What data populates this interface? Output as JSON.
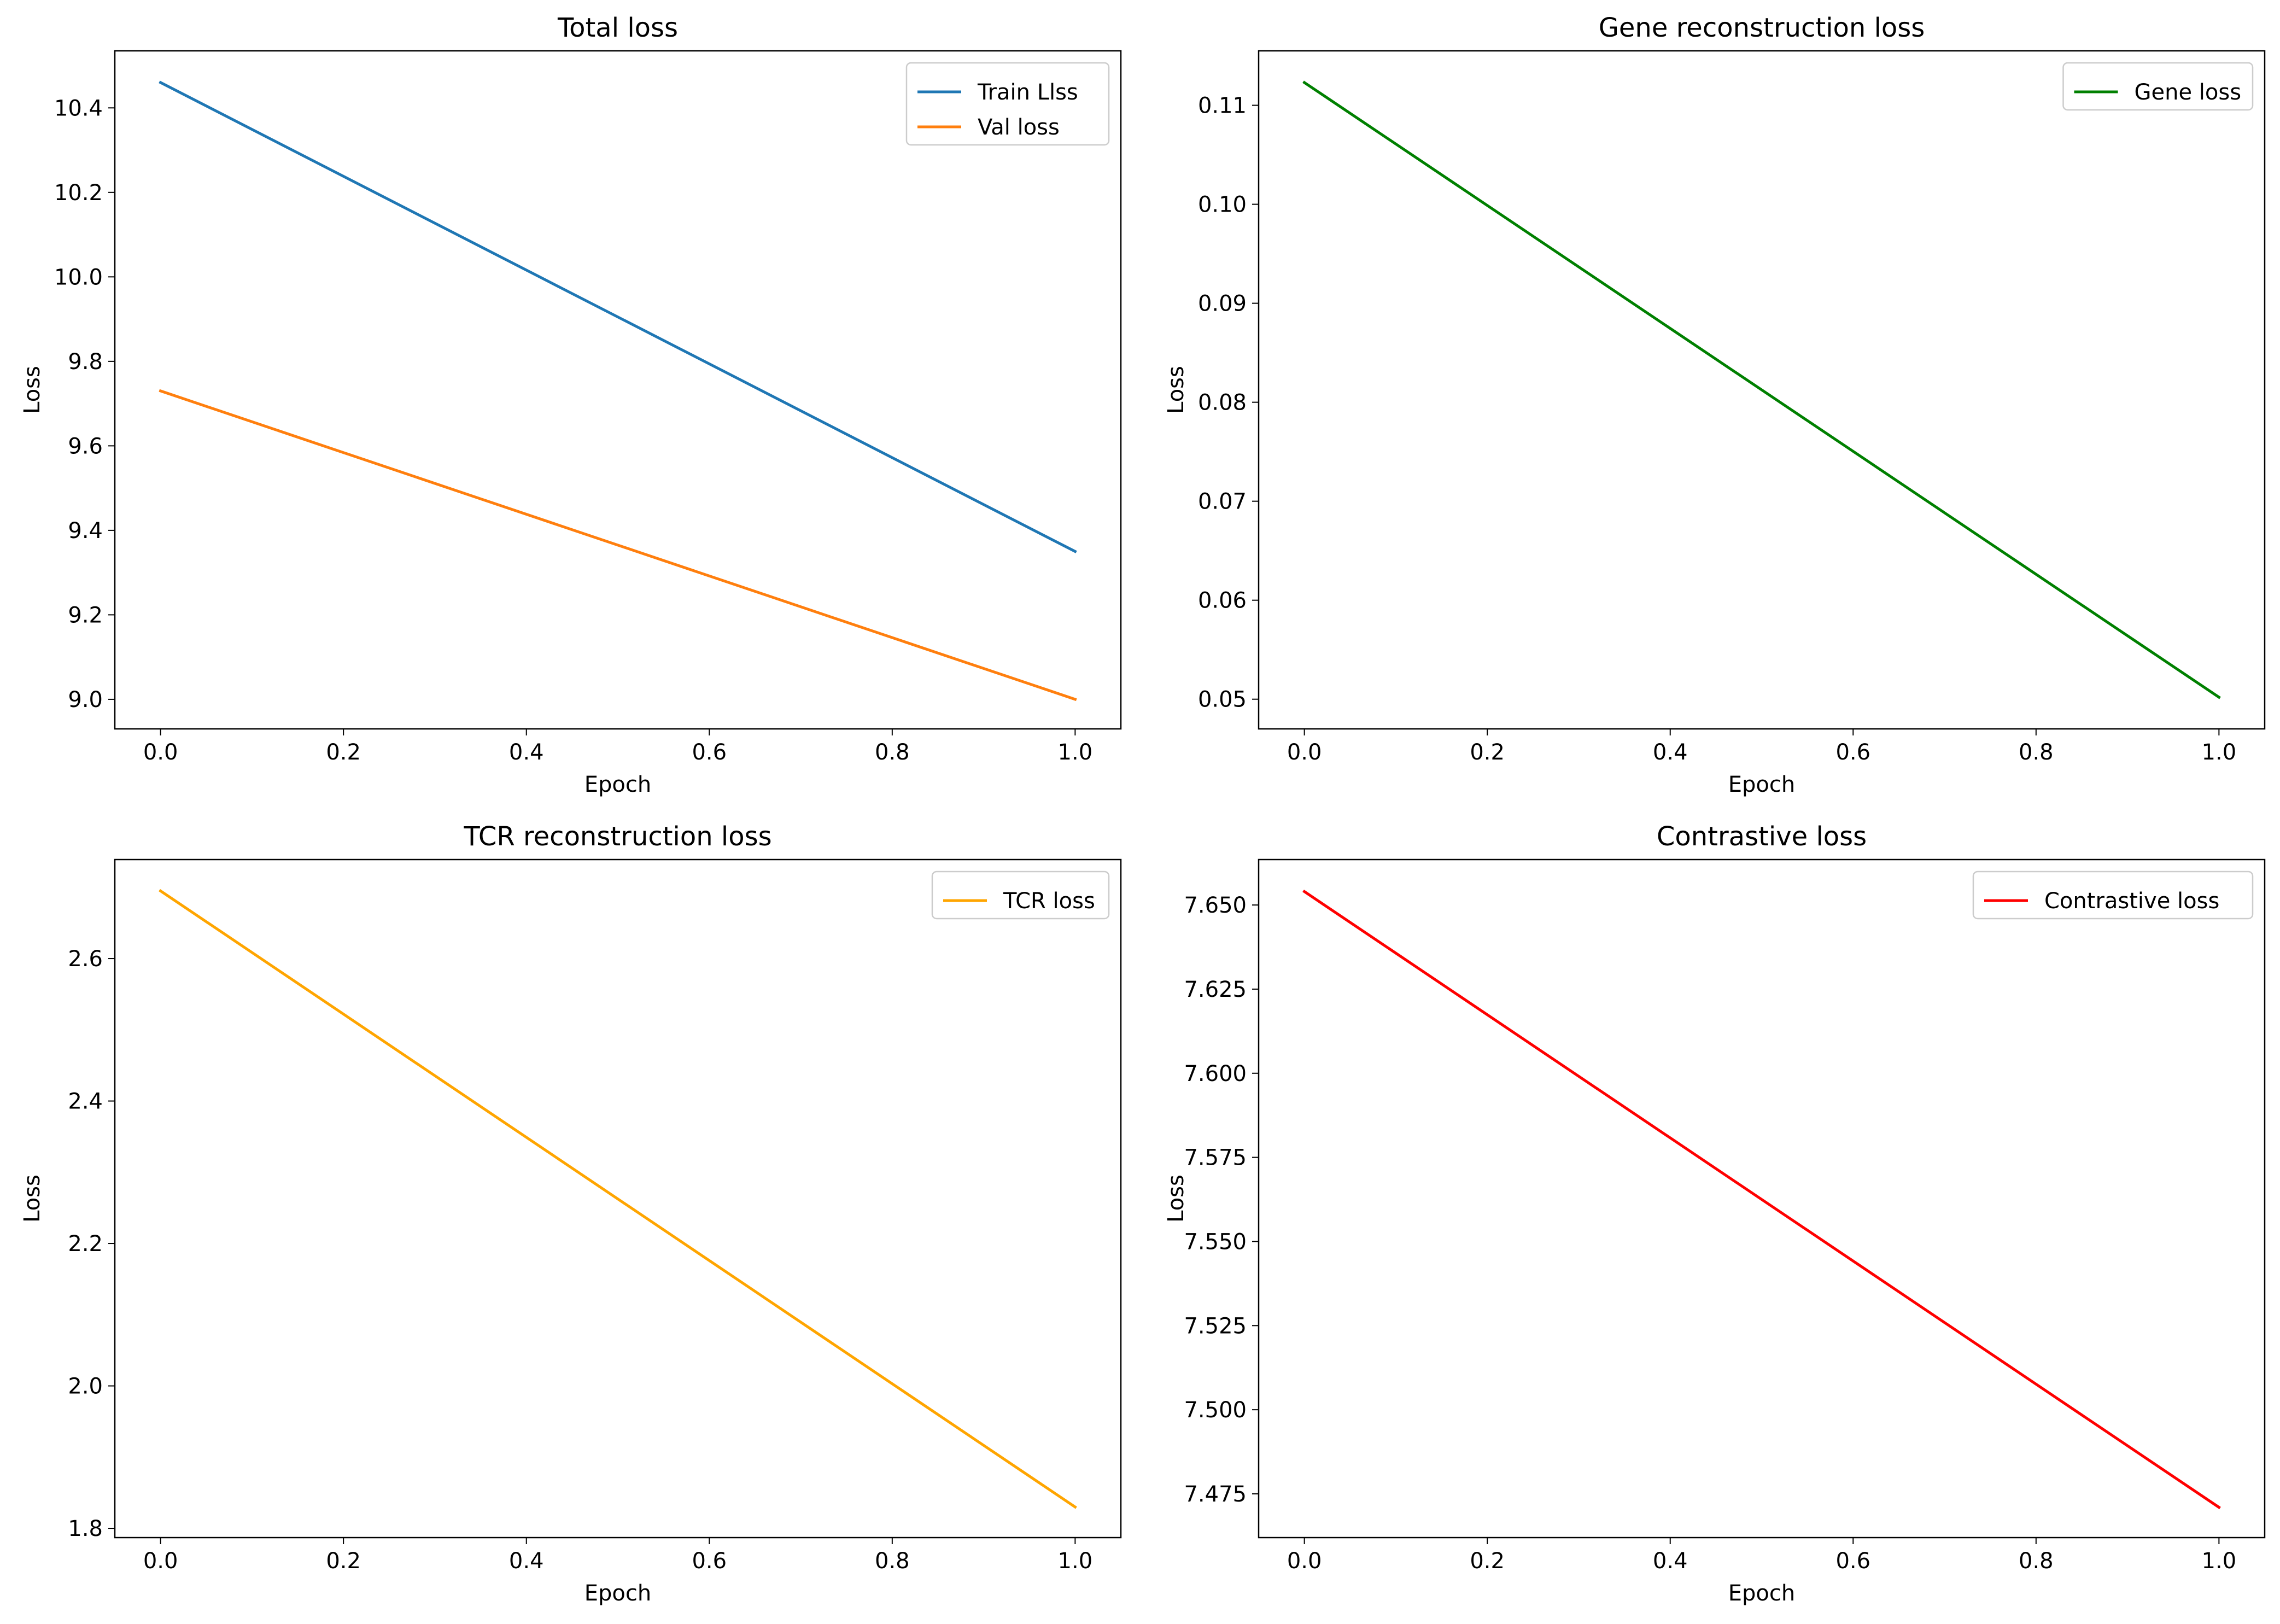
{
  "chart_data": [
    {
      "type": "line",
      "title": "Total loss",
      "xlabel": "Epoch",
      "ylabel": "Loss",
      "xlim": [
        -0.05,
        1.05
      ],
      "ylim": [
        8.93,
        10.535
      ],
      "xticks": [
        "0.0",
        "0.2",
        "0.4",
        "0.6",
        "0.8",
        "1.0"
      ],
      "yticks": [
        "9.0",
        "9.2",
        "9.4",
        "9.6",
        "9.8",
        "10.0",
        "10.2",
        "10.4"
      ],
      "ytick_values": [
        9.0,
        9.2,
        9.4,
        9.6,
        9.8,
        10.0,
        10.2,
        10.4
      ],
      "legend_position": "top-right",
      "grid": false,
      "series": [
        {
          "name": "Train Llss",
          "color": "#1f77b4",
          "x": [
            0,
            1
          ],
          "y": [
            10.46,
            9.35
          ]
        },
        {
          "name": "Val loss",
          "color": "#ff7f0e",
          "x": [
            0,
            1
          ],
          "y": [
            9.73,
            9.0
          ]
        }
      ]
    },
    {
      "type": "line",
      "title": "Gene reconstruction loss",
      "xlabel": "Epoch",
      "ylabel": "Loss",
      "xlim": [
        -0.05,
        1.05
      ],
      "ylim": [
        0.047,
        0.1155
      ],
      "xticks": [
        "0.0",
        "0.2",
        "0.4",
        "0.6",
        "0.8",
        "1.0"
      ],
      "yticks": [
        "0.05",
        "0.06",
        "0.07",
        "0.08",
        "0.09",
        "0.10",
        "0.11"
      ],
      "ytick_values": [
        0.05,
        0.06,
        0.07,
        0.08,
        0.09,
        0.1,
        0.11
      ],
      "legend_position": "top-right",
      "grid": false,
      "series": [
        {
          "name": "Gene loss",
          "color": "#008000",
          "x": [
            0,
            1
          ],
          "y": [
            0.1123,
            0.0502
          ]
        }
      ]
    },
    {
      "type": "line",
      "title": "TCR reconstruction loss",
      "xlabel": "Epoch",
      "ylabel": "Loss",
      "xlim": [
        -0.05,
        1.05
      ],
      "ylim": [
        1.787,
        2.739
      ],
      "xticks": [
        "0.0",
        "0.2",
        "0.4",
        "0.6",
        "0.8",
        "1.0"
      ],
      "yticks": [
        "1.8",
        "2.0",
        "2.2",
        "2.4",
        "2.6"
      ],
      "ytick_values": [
        1.8,
        2.0,
        2.2,
        2.4,
        2.6
      ],
      "legend_position": "top-right",
      "grid": false,
      "series": [
        {
          "name": "TCR loss",
          "color": "#ffa500",
          "x": [
            0,
            1
          ],
          "y": [
            2.695,
            1.83
          ]
        }
      ]
    },
    {
      "type": "line",
      "title": "Contrastive loss",
      "xlabel": "Epoch",
      "ylabel": "Loss",
      "xlim": [
        -0.05,
        1.05
      ],
      "ylim": [
        7.462,
        7.6635
      ],
      "xticks": [
        "0.0",
        "0.2",
        "0.4",
        "0.6",
        "0.8",
        "1.0"
      ],
      "yticks": [
        "7.475",
        "7.500",
        "7.525",
        "7.550",
        "7.575",
        "7.600",
        "7.625",
        "7.650"
      ],
      "ytick_values": [
        7.475,
        7.5,
        7.525,
        7.55,
        7.575,
        7.6,
        7.625,
        7.65
      ],
      "legend_position": "top-right",
      "grid": false,
      "series": [
        {
          "name": "Contrastive loss",
          "color": "#ff0000",
          "x": [
            0,
            1
          ],
          "y": [
            7.654,
            7.471
          ]
        }
      ]
    }
  ]
}
